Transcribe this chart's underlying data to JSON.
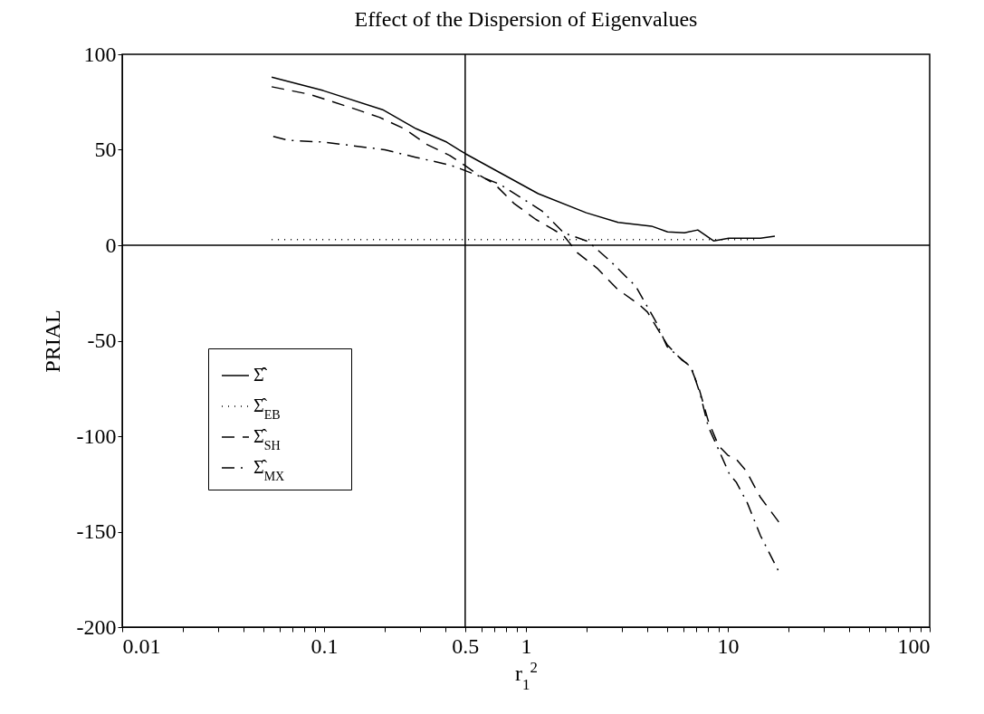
{
  "chart_data": {
    "type": "line",
    "title": "Effect of the Dispersion of Eigenvalues",
    "xlabel": "r$_{1}$$^{2}$",
    "ylabel": "PRIAL",
    "log": "x",
    "grid": false,
    "legend": "bottom left",
    "marker": "none",
    "xlim": [
      0.01,
      100
    ],
    "ylim": [
      -200,
      100
    ],
    "xticks": [
      0.01,
      {
        "value": 0.02,
        "label": null
      },
      {
        "value": 0.03,
        "label": null
      },
      {
        "value": 0.04,
        "label": null
      },
      {
        "value": 0.05,
        "label": null
      },
      {
        "value": 0.06,
        "label": null
      },
      {
        "value": 0.07,
        "label": null
      },
      {
        "value": 0.08,
        "label": null
      },
      {
        "value": 0.09,
        "label": null
      },
      0.1,
      {
        "value": 0.2,
        "label": null
      },
      {
        "value": 0.3,
        "label": null
      },
      {
        "value": 0.4,
        "label": null
      },
      0.5,
      {
        "value": 0.6,
        "label": null
      },
      {
        "value": 0.7,
        "label": null
      },
      {
        "value": 0.8,
        "label": null
      },
      {
        "value": 0.9,
        "label": null
      },
      1,
      {
        "value": 2,
        "label": null
      },
      {
        "value": 3,
        "label": null
      },
      {
        "value": 4,
        "label": null
      },
      {
        "value": 5,
        "label": null
      },
      {
        "value": 6,
        "label": null
      },
      {
        "value": 7,
        "label": null
      },
      {
        "value": 8,
        "label": null
      },
      {
        "value": 9,
        "label": null
      },
      10,
      {
        "value": 20,
        "label": null
      },
      {
        "value": 30,
        "label": null
      },
      {
        "value": 40,
        "label": null
      },
      {
        "value": 50,
        "label": null
      },
      {
        "value": 60,
        "label": null
      },
      {
        "value": 70,
        "label": null
      },
      {
        "value": 80,
        "label": null
      },
      {
        "value": 90,
        "label": null
      },
      100
    ],
    "yticks": [
      -200,
      -150,
      -100,
      -50,
      0,
      50,
      100
    ],
    "ref_lines": [
      {
        "axis": "x",
        "value": 0.5,
        "color": "#000000",
        "line_style": "solid"
      },
      {
        "axis": "y",
        "value": 0,
        "color": "#000000",
        "line_style": "solid"
      }
    ],
    "series": [
      {
        "name": "Σ̂̂",
        "color": "#000000",
        "line_style": "solid",
        "x": [
          0.055,
          0.099,
          0.195,
          0.286,
          0.405,
          0.5,
          1.15,
          1.99,
          2.86,
          4.19,
          5.03,
          6.1,
          7.1,
          8.5,
          10.1,
          14.5,
          17.1
        ],
        "values": [
          88,
          81,
          71,
          61,
          54,
          48,
          27,
          17,
          12,
          10,
          7,
          6.5,
          8,
          2.3,
          3.7,
          3.7,
          4.7
        ]
      },
      {
        "name": "Σ̂$_{EB}$",
        "color": "#000000",
        "line_style": "dotted",
        "x": [
          0.055,
          14.3
        ],
        "values": [
          3,
          3
        ]
      },
      {
        "name": "Σ̂$_{SH}$",
        "color": "#000000",
        "line_style": "dashed",
        "x": [
          0.055,
          0.085,
          0.141,
          0.188,
          0.25,
          0.32,
          0.42,
          0.51,
          0.56,
          0.7,
          0.87,
          1.12,
          1.54,
          1.8,
          2.25,
          2.84,
          3.63,
          4.0,
          5.0,
          5.9,
          6.5,
          7.2,
          8.0,
          9.0,
          10.0,
          11.0,
          12.3,
          14.5,
          17.9
        ],
        "values": [
          83,
          79,
          71.5,
          67,
          61,
          53,
          47,
          41,
          38,
          32,
          22,
          13.5,
          5,
          -4,
          -12,
          -23,
          -31,
          -35,
          -52,
          -60,
          -63,
          -75,
          -92,
          -105,
          -110,
          -112,
          -118,
          -132,
          -145
        ]
      },
      {
        "name": "Σ̂$_{MX}$",
        "color": "#000000",
        "line_style": "dashdot",
        "x": [
          0.056,
          0.066,
          0.1,
          0.2,
          0.286,
          0.42,
          0.475,
          0.74,
          1.2,
          1.54,
          2.03,
          2.6,
          3.5,
          4.4,
          5.0,
          5.8,
          6.6,
          7.3,
          8.0,
          9.0,
          10.2,
          11.0,
          12.5,
          14.5,
          17.9
        ],
        "values": [
          57,
          55,
          54,
          50,
          46,
          42,
          40,
          32,
          18,
          6.5,
          2,
          -8,
          -21.5,
          -40,
          -53,
          -59,
          -64,
          -78,
          -95,
          -107,
          -120,
          -124,
          -135,
          -152,
          -171
        ]
      }
    ]
  }
}
